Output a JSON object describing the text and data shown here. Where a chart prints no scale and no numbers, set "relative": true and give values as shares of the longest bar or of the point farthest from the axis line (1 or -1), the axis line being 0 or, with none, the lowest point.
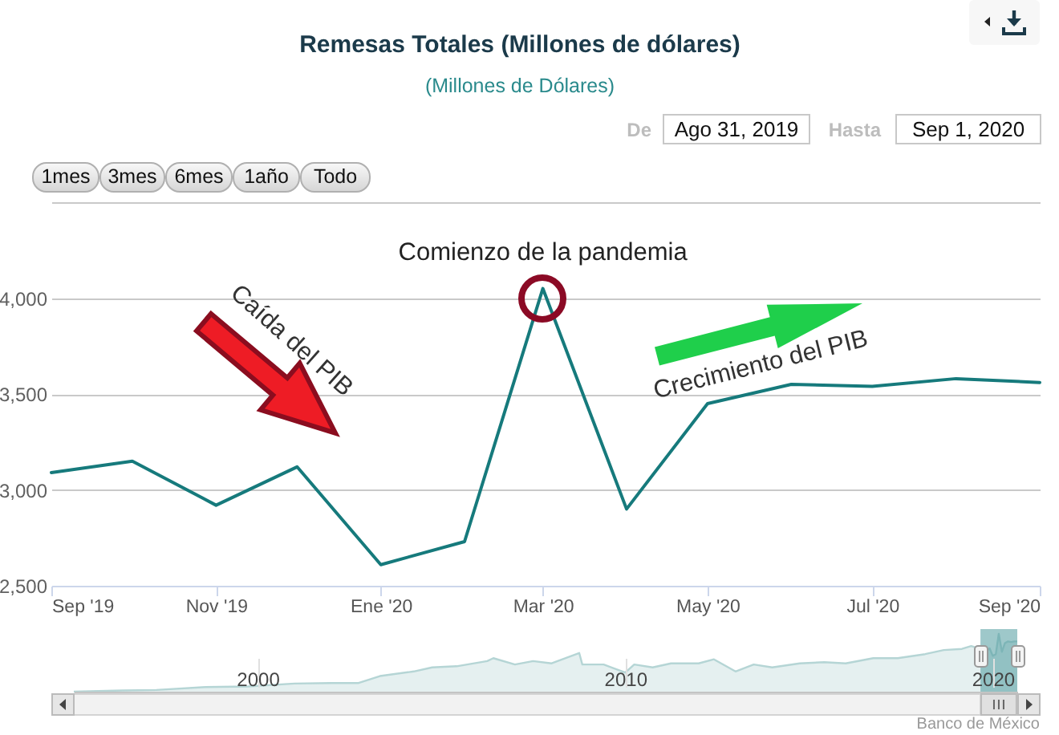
{
  "chart_data": [
    {
      "type": "line",
      "title": "Remesas Totales (Millones de dólares)",
      "subtitle": "(Millones de Dólares)",
      "x": [
        "2019-09",
        "2019-10",
        "2019-11",
        "2019-12",
        "2020-01",
        "2020-02",
        "2020-03",
        "2020-04",
        "2020-05",
        "2020-06",
        "2020-07",
        "2020-08",
        "2020-09"
      ],
      "series": [
        {
          "color": "#167a7c",
          "values": [
            3090,
            3150,
            2920,
            3120,
            2610,
            2730,
            4050,
            2900,
            3450,
            3550,
            3540,
            3580,
            3560
          ]
        }
      ],
      "xlim": [
        "2019-09",
        "2020-09"
      ],
      "xticks": [
        {
          "value": "2019-09",
          "label": "Sep '19"
        },
        {
          "value": "2019-11",
          "label": "Nov '19"
        },
        {
          "value": "2020-01",
          "label": "Ene '20"
        },
        {
          "value": "2020-03",
          "label": "Mar '20"
        },
        {
          "value": "2020-05",
          "label": "May '20"
        },
        {
          "value": "2020-07",
          "label": "Jul '20"
        },
        {
          "value": "2020-09",
          "label": "Sep '20"
        }
      ],
      "ylim": [
        2500,
        4500
      ],
      "yticks": [
        {
          "value": 2500,
          "label": "2,500"
        },
        {
          "value": 3000,
          "label": "3,000"
        },
        {
          "value": 3500,
          "label": "3,500"
        },
        {
          "value": 4000,
          "label": "4,000"
        },
        {
          "value": 4500,
          "label": null
        }
      ],
      "grid": "y",
      "annotations": [
        {
          "text": "Comienzo de la pandemia",
          "x": "2020-03",
          "y": 4050
        },
        "Caída del PIB",
        "Crecimiento del PIB",
        "1mes",
        "3mes",
        "6mes",
        "1año",
        "Todo",
        "De",
        "Ago 31, 2019",
        "Hasta",
        "Sep 1, 2020",
        "Banco de México"
      ]
    },
    {
      "type": "area",
      "relative": true,
      "x": [
        "1995-01",
        "1996-05",
        "1997-04",
        "1998-08",
        "1999-10",
        "2001-01",
        "2002-01",
        "2002-10",
        "2003-05",
        "2004-04",
        "2004-10",
        "2005-06",
        "2006-04",
        "2006-06",
        "2007-01",
        "2007-07",
        "2008-01",
        "2008-10",
        "2008-11",
        "2009-06",
        "2010-01",
        "2010-04",
        "2010-10",
        "2011-04",
        "2012-01",
        "2012-06",
        "2013-01",
        "2013-07",
        "2014-01",
        "2014-10",
        "2015-06",
        "2016-01",
        "2016-10",
        "2017-06",
        "2018-03",
        "2018-09",
        "2019-03",
        "2019-06",
        "2019-09",
        "2019-10",
        "2019-11",
        "2019-12",
        "2020-01",
        "2020-02",
        "2020-03",
        "2020-04",
        "2020-05",
        "2020-06",
        "2020-07",
        "2020-08",
        "2020-09"
      ],
      "series": [
        {
          "color": "#b5d5d5",
          "values": [
            0,
            0.02,
            0.03,
            0.08,
            0.09,
            0.14,
            0.15,
            0.15,
            0.27,
            0.35,
            0.42,
            0.44,
            0.53,
            0.58,
            0.47,
            0.53,
            0.49,
            0.67,
            0.47,
            0.47,
            0.33,
            0.47,
            0.42,
            0.49,
            0.49,
            0.56,
            0.35,
            0.47,
            0.42,
            0.49,
            0.51,
            0.49,
            0.58,
            0.58,
            0.65,
            0.72,
            0.74,
            0.79,
            0.74,
            0.76,
            0.7,
            0.75,
            0.62,
            0.65,
            1,
            0.69,
            0.84,
            0.87,
            0.86,
            0.87,
            0.87
          ]
        }
      ],
      "xlim": [
        "1995-01",
        "2020-09"
      ],
      "xticks": [
        {
          "value": "2000",
          "label": "2000"
        },
        {
          "value": "2010",
          "label": "2010"
        },
        {
          "value": "2020",
          "label": "2020"
        }
      ],
      "grid": "x",
      "bands": [
        {
          "axis": "x",
          "from": "2019-09",
          "to": "2020-09",
          "color": "#4f9a9e"
        }
      ]
    }
  ]
}
